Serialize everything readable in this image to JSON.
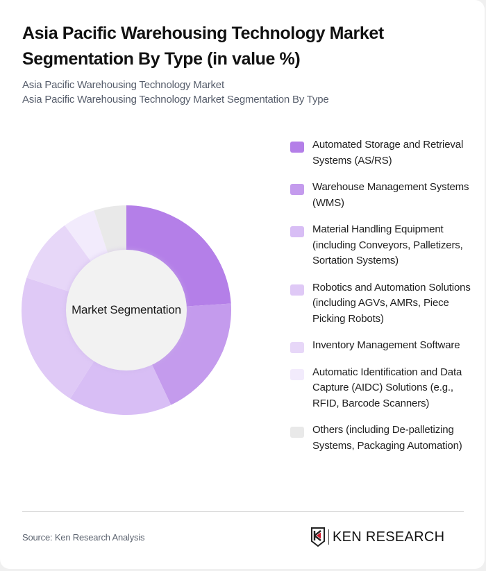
{
  "header": {
    "title": "Asia Pacific Warehousing Technology Market Segmentation By Type (in value %)",
    "subtitle_lines": [
      "Asia Pacific Warehousing Technology Market",
      "Asia Pacific Warehousing Technology Market Segmentation By Type"
    ]
  },
  "chart": {
    "center_label": "Market Segmentation"
  },
  "chart_data": {
    "type": "pie",
    "variant": "donut",
    "title": "Asia Pacific Warehousing Technology Market Segmentation By Type (in value %)",
    "center_label": "Market Segmentation",
    "legend_position": "right",
    "categories": [
      "Automated Storage and Retrieval Systems (AS/RS)",
      "Warehouse Management Systems (WMS)",
      "Material Handling Equipment (including Conveyors, Palletizers, Sortation Systems)",
      "Robotics and Automation Solutions (including AGVs, AMRs, Piece Picking Robots)",
      "Inventory Management Software",
      "Automatic Identification and Data Capture (AIDC) Solutions (e.g., RFID, Barcode Scanners)",
      "Others (including De-palletizing Systems, Packaging Automation)"
    ],
    "values": [
      24,
      19,
      16,
      21,
      10,
      5,
      5
    ],
    "colors": [
      "#b47fe8",
      "#c49bed",
      "#d8bef5",
      "#dfc9f6",
      "#e7d7f8",
      "#f2ebfc",
      "#e9e9e9"
    ],
    "units": "%"
  },
  "legend": {
    "items": [
      {
        "label": "Automated Storage and Retrieval Systems (AS/RS)",
        "color": "#b47fe8"
      },
      {
        "label": "Warehouse Management Systems (WMS)",
        "color": "#c49bed"
      },
      {
        "label": "Material Handling Equipment (including Conveyors, Palletizers, Sortation Systems)",
        "color": "#d8bef5"
      },
      {
        "label": "Robotics and Automation Solutions (including AGVs, AMRs, Piece Picking Robots)",
        "color": "#dfc9f6"
      },
      {
        "label": "Inventory Management Software",
        "color": "#e7d7f8"
      },
      {
        "label": "Automatic Identification and Data Capture (AIDC) Solutions (e.g., RFID, Barcode Scanners)",
        "color": "#f2ebfc"
      },
      {
        "label": "Others (including De-palletizing Systems, Packaging Automation)",
        "color": "#e9e9e9"
      }
    ]
  },
  "footer": {
    "source": "Source: Ken Research Analysis",
    "logo_text": "KEN RESEARCH"
  }
}
